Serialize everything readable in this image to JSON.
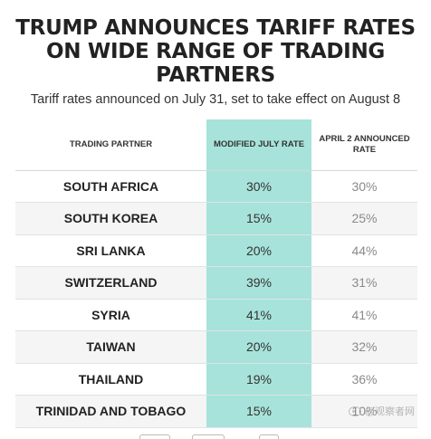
{
  "header": {
    "title": "TRUMP ANNOUNCES TARIFF RATES ON WIDE RANGE OF TRADING PARTNERS",
    "subtitle": "Tariff rates announced on July 31, set to take effect on August 8"
  },
  "table": {
    "columns": [
      "TRADING PARTNER",
      "MODIFIED JULY RATE",
      "APRIL 2 ANNOUNCED RATE"
    ],
    "rows": [
      {
        "partner": "SOUTH AFRICA",
        "modified": "30%",
        "april": "30%"
      },
      {
        "partner": "SOUTH KOREA",
        "modified": "15%",
        "april": "25%"
      },
      {
        "partner": "SRI LANKA",
        "modified": "20%",
        "april": "44%"
      },
      {
        "partner": "SWITZERLAND",
        "modified": "39%",
        "april": "31%"
      },
      {
        "partner": "SYRIA",
        "modified": "41%",
        "april": "41%"
      },
      {
        "partner": "TAIWAN",
        "modified": "20%",
        "april": "32%"
      },
      {
        "partner": "THAILAND",
        "modified": "19%",
        "april": "36%"
      },
      {
        "partner": "TRINIDAD AND TOBAGO",
        "modified": "15%",
        "april": "10%"
      }
    ]
  },
  "colors": {
    "highlight": "#a7e3da",
    "stripe": "#f5f5f5",
    "muted_text": "#8a8a8a"
  },
  "watermark": {
    "icon": "weibo-icon",
    "text": "@观察者网"
  }
}
